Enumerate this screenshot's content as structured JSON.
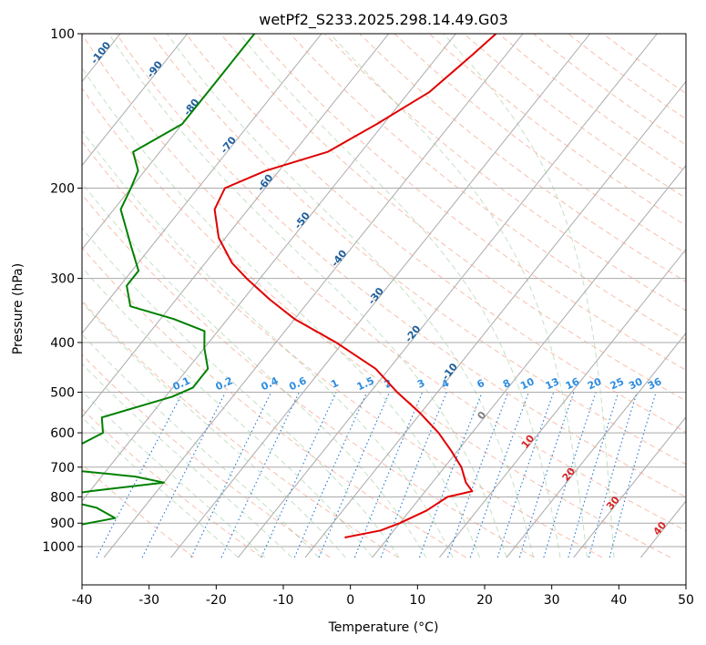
{
  "chart_data": {
    "type": "line",
    "subtype": "skew-t log-p diagram",
    "title": "wetPf2_S233.2025.298.14.49.G03",
    "xlabel": "Temperature (°C)",
    "ylabel": "Pressure (hPa)",
    "xlim": [
      -40,
      50
    ],
    "ylim": [
      1050,
      100
    ],
    "y_scale": "log",
    "x_ticks": [
      -40,
      -30,
      -20,
      -10,
      0,
      10,
      20,
      30,
      40,
      50
    ],
    "y_ticks": [
      100,
      200,
      300,
      400,
      500,
      600,
      700,
      800,
      900,
      1000
    ],
    "grid": true,
    "background_lines": {
      "isotherms": "solid gray, skewed",
      "dry_adiabats": "dashed salmon",
      "moist_adiabats": "dashed light green",
      "mixing_ratio": "dotted blue"
    },
    "isotherm_labels": [
      "-100",
      "-90",
      "-80",
      "-70",
      "-60",
      "-50",
      "-40",
      "-30",
      "-20",
      "-10",
      "0",
      "10",
      "20",
      "30",
      "40"
    ],
    "mixing_ratio_labels": [
      "0.1",
      "0.2",
      "0.4",
      "0.6",
      "1",
      "1.5",
      "2",
      "3",
      "4",
      "6",
      "8",
      "10",
      "13",
      "16",
      "20",
      "25",
      "30",
      "36"
    ],
    "series": [
      {
        "color": "#e00000",
        "points": [
          [
            100,
            -44
          ],
          [
            110,
            -45
          ],
          [
            130,
            -47
          ],
          [
            150,
            -51
          ],
          [
            170,
            -55
          ],
          [
            185,
            -62
          ],
          [
            200,
            -66
          ],
          [
            220,
            -65
          ],
          [
            250,
            -61
          ],
          [
            280,
            -56
          ],
          [
            300,
            -52
          ],
          [
            330,
            -46
          ],
          [
            360,
            -40
          ],
          [
            400,
            -31
          ],
          [
            450,
            -22
          ],
          [
            500,
            -16
          ],
          [
            550,
            -10
          ],
          [
            600,
            -5
          ],
          [
            650,
            -1
          ],
          [
            700,
            2.5
          ],
          [
            750,
            5
          ],
          [
            780,
            7
          ],
          [
            800,
            4
          ],
          [
            850,
            2.5
          ],
          [
            900,
            0
          ],
          [
            930,
            -2
          ],
          [
            960,
            -6.5
          ]
        ]
      },
      {
        "color": "#008000",
        "points": [
          [
            100,
            -80
          ],
          [
            115,
            -80
          ],
          [
            130,
            -80
          ],
          [
            150,
            -80
          ],
          [
            170,
            -84
          ],
          [
            185,
            -81
          ],
          [
            200,
            -80
          ],
          [
            220,
            -79
          ],
          [
            260,
            -73
          ],
          [
            290,
            -69
          ],
          [
            310,
            -69
          ],
          [
            340,
            -66
          ],
          [
            360,
            -58
          ],
          [
            380,
            -52
          ],
          [
            410,
            -50
          ],
          [
            450,
            -47
          ],
          [
            490,
            -47
          ],
          [
            510,
            -49
          ],
          [
            560,
            -57
          ],
          [
            600,
            -55
          ],
          [
            650,
            -58
          ],
          [
            680,
            -63
          ],
          [
            700,
            -60
          ],
          [
            730,
            -45
          ],
          [
            750,
            -40
          ],
          [
            780,
            -50
          ],
          [
            800,
            -55
          ],
          [
            840,
            -47
          ],
          [
            880,
            -43
          ],
          [
            910,
            -48
          ],
          [
            920,
            -57
          ],
          [
            950,
            -63
          ],
          [
            960,
            -47
          ]
        ]
      }
    ]
  }
}
